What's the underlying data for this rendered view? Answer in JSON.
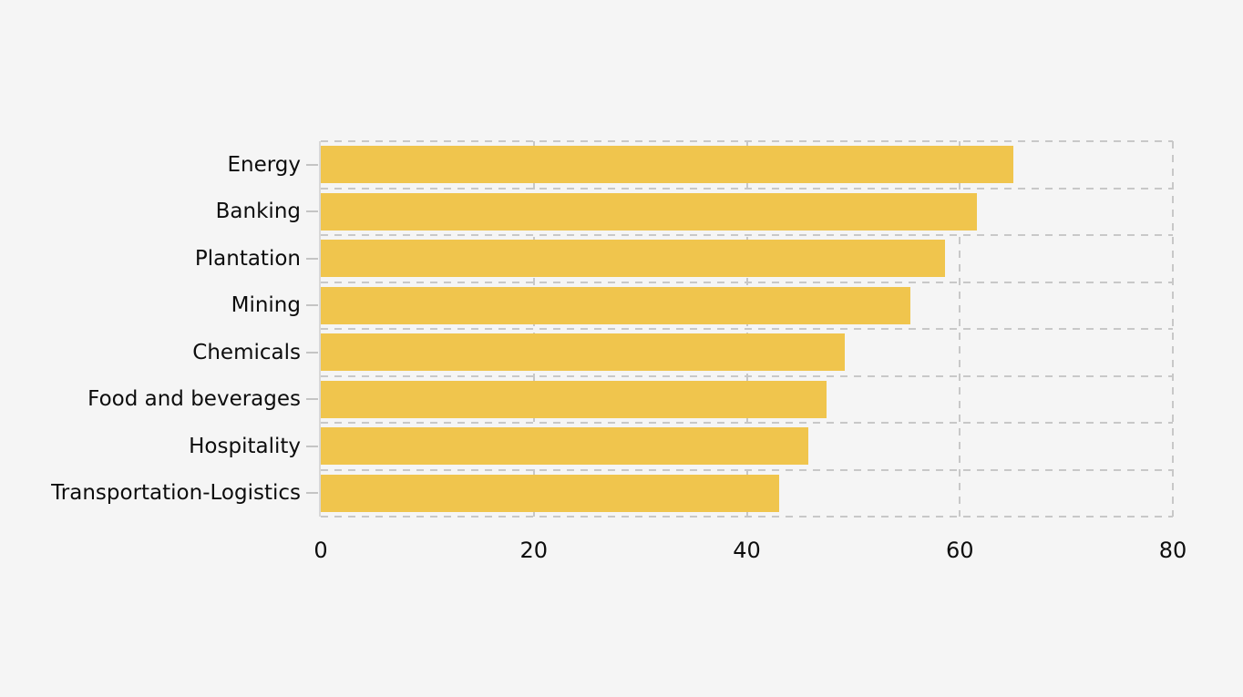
{
  "chart_data": {
    "type": "bar",
    "orientation": "horizontal",
    "title": "",
    "xlabel": "",
    "ylabel": "",
    "categories": [
      "Energy",
      "Banking",
      "Plantation",
      "Mining",
      "Chemicals",
      "Food and beverages",
      "Hospitality",
      "Transportation-Logistics"
    ],
    "values": [
      65,
      61.6,
      58.6,
      55.4,
      49.2,
      47.5,
      45.8,
      43
    ],
    "xlim": [
      0,
      80
    ],
    "xticks": [
      0,
      20,
      40,
      60,
      80
    ],
    "grid": "dashed",
    "legend_position": "none",
    "colors": {
      "bar": "#F0C54D",
      "background": "#F5F5F5",
      "gridline": "#C8C8C8",
      "axis_line": "#D8D8D8",
      "tick_mark": "#C4C4C4",
      "text": "#0D0D0D"
    }
  }
}
